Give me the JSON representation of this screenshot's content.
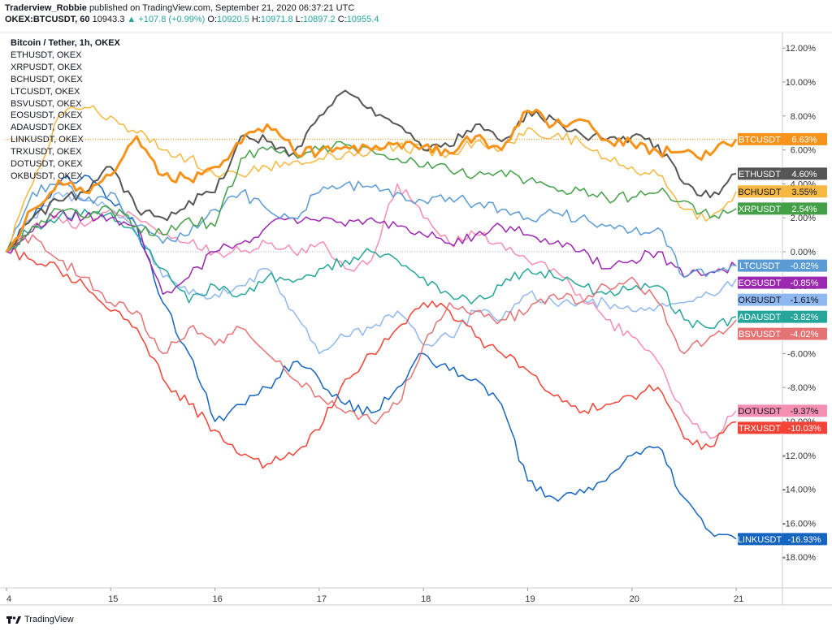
{
  "header": {
    "author": "Traderview_Robbie",
    "published": "published on TradingView.com, September 21, 2020 06:37:21 UTC"
  },
  "ohlc": {
    "symbol": "OKEX:BTCUSDT, 60",
    "price": "10943.3",
    "change": "+107.8 (+0.99%)",
    "open_label": "O:",
    "open": "10920.5",
    "high_label": "H:",
    "high": "10971.8",
    "low_label": "L:",
    "low": "10897.2",
    "close_label": "C:",
    "close": "10955.4"
  },
  "legend": {
    "main": "Bitcoin / Tether, 1h, OKEX",
    "items": [
      "ETHUSDT, OKEX",
      "XRPUSDT, OKEX",
      "BCHUSDT, OKEX",
      "LTCUSDT, OKEX",
      "BSVUSDT, OKEX",
      "EOSUSDT, OKEX",
      "ADAUSDT, OKEX",
      "LINKUSDT, OKEX",
      "TRXUSDT, OKEX",
      "DOTUSDT, OKEX",
      "OKBUSDT, OKEX"
    ]
  },
  "footer": {
    "brand": "TradingView"
  },
  "chart_data": {
    "type": "line",
    "x_ticks": [
      "4",
      "15",
      "16",
      "17",
      "18",
      "19",
      "20",
      "21"
    ],
    "y_ticks": [
      "12.00%",
      "10.00%",
      "8.00%",
      "6.00%",
      "4.00%",
      "2.00%",
      "0.00%",
      "-2.00%",
      "-4.00%",
      "-6.00%",
      "-8.00%",
      "-10.00%",
      "-12.00%",
      "-14.00%",
      "-16.00%",
      "-18.00%"
    ],
    "ylim": [
      -20,
      12.5
    ],
    "x": [
      0,
      0.25,
      0.5,
      0.75,
      1,
      1.25,
      1.5,
      1.75,
      2,
      2.25,
      2.5,
      2.75,
      3,
      3.25,
      3.5,
      3.75,
      4,
      4.25,
      4.5,
      4.75,
      5,
      5.25,
      5.5,
      5.75,
      6,
      6.25,
      6.5,
      6.75,
      7
    ],
    "series": [
      {
        "name": "BTCUSDT",
        "color": "#f7931a",
        "label": "6.63%",
        "value": 6.63,
        "width": 3,
        "values": [
          0,
          2.5,
          4.2,
          3.5,
          4.5,
          6.8,
          4.5,
          4.3,
          5.0,
          6.4,
          7.5,
          6.0,
          5.9,
          6.2,
          6.0,
          6.4,
          6.2,
          5.8,
          6.8,
          6.0,
          8.3,
          7.5,
          7.8,
          6.6,
          6.4,
          5.9,
          5.9,
          5.7,
          6.63
        ]
      },
      {
        "name": "ETHUSDT",
        "color": "#555555",
        "label": "4.60%",
        "value": 4.6,
        "width": 2,
        "values": [
          0,
          2.0,
          3.0,
          3.5,
          5.0,
          2.5,
          2.0,
          3.0,
          3.5,
          6.8,
          6.5,
          5.8,
          8.0,
          9.5,
          8.5,
          7.5,
          6.0,
          6.2,
          7.5,
          6.5,
          8.3,
          7.8,
          7.0,
          6.6,
          6.8,
          6.3,
          4.0,
          3.2,
          4.6
        ]
      },
      {
        "name": "XRPUSDT",
        "color": "#43a047",
        "label": "2.54%",
        "value": 2.54,
        "width": 1.5,
        "values": [
          0,
          1.5,
          2.5,
          2.0,
          2.5,
          1.5,
          1.0,
          2.0,
          1.5,
          5.5,
          6.0,
          5.8,
          6.0,
          6.3,
          6.0,
          5.5,
          5.0,
          4.8,
          4.5,
          4.8,
          4.2,
          3.8,
          3.6,
          3.2,
          3.2,
          3.5,
          3.0,
          2.0,
          2.54
        ]
      },
      {
        "name": "BCHUSDT",
        "color": "#f5b841",
        "label": "3.55%",
        "value": 3.55,
        "width": 1.5,
        "values": [
          0,
          4.0,
          8.0,
          8.5,
          8.0,
          7.0,
          6.0,
          5.5,
          4.5,
          4.5,
          5.0,
          5.3,
          5.5,
          5.8,
          6.0,
          6.2,
          6.0,
          5.8,
          6.5,
          6.0,
          7.3,
          6.8,
          6.5,
          5.5,
          5.0,
          4.5,
          2.5,
          2.0,
          3.55
        ]
      },
      {
        "name": "LTCUSDT",
        "color": "#5b9bd5",
        "label": "-0.82%",
        "value": -0.82,
        "width": 1.5,
        "values": [
          0,
          3.5,
          4.0,
          3.0,
          3.5,
          1.5,
          0.5,
          1.0,
          2.5,
          3.5,
          2.5,
          2.0,
          3.5,
          4.0,
          3.8,
          3.5,
          3.0,
          3.2,
          2.8,
          2.5,
          2.0,
          2.3,
          2.0,
          1.5,
          1.2,
          1.4,
          -1.5,
          -1.2,
          -0.82
        ]
      },
      {
        "name": "BSVUSDT",
        "color": "#e57373",
        "label": "-4.02%",
        "value": -4.02,
        "width": 1.5,
        "values": [
          0,
          1.0,
          -0.5,
          -1.5,
          -3.0,
          -3.5,
          -6.0,
          -4.5,
          -5.5,
          -4.5,
          -6.0,
          -7.5,
          -8.5,
          -9.5,
          -10.0,
          -9.0,
          -5.5,
          -3.0,
          -3.5,
          -4.0,
          -3.5,
          -2.5,
          -3.0,
          -2.0,
          -1.5,
          -3.0,
          -6.0,
          -5.0,
          -4.02
        ]
      },
      {
        "name": "EOSUSDT",
        "color": "#9c27b0",
        "label": "-0.85%",
        "value": -0.85,
        "width": 1.5,
        "values": [
          0,
          1.2,
          2.3,
          2.0,
          2.0,
          1.5,
          -2.5,
          -1.5,
          0,
          0.5,
          1.5,
          2.0,
          1.8,
          1.5,
          2.0,
          1.5,
          1.0,
          0.5,
          1.0,
          1.5,
          1.0,
          0.5,
          0,
          -1.0,
          -0.5,
          0,
          -1.5,
          -1.2,
          -0.85
        ]
      },
      {
        "name": "ADAUSDT",
        "color": "#26a69a",
        "label": "-3.82%",
        "value": -3.82,
        "width": 1.5,
        "values": [
          0,
          1.5,
          2.0,
          2.5,
          2.3,
          1.0,
          -1.0,
          -3.0,
          -2.0,
          -2.5,
          -1.5,
          -1.8,
          -1.0,
          -0.5,
          0,
          -0.5,
          -1.5,
          -2.5,
          -2.8,
          -2.0,
          -1.0,
          -1.5,
          -2.0,
          -2.5,
          -2.2,
          -2.0,
          -4.0,
          -4.5,
          -3.82
        ]
      },
      {
        "name": "LINKUSDT",
        "color": "#1565c0",
        "label": "-16.93%",
        "value": -16.93,
        "width": 1.5,
        "values": [
          0,
          2.0,
          4.0,
          4.5,
          3.0,
          1.5,
          -3.0,
          -6.0,
          -10.0,
          -9.0,
          -8.0,
          -6.5,
          -7.5,
          -9.0,
          -9.5,
          -8.0,
          -6.0,
          -7.0,
          -7.5,
          -9.0,
          -13.5,
          -14.5,
          -14.0,
          -13.5,
          -12.0,
          -11.5,
          -14.5,
          -16.5,
          -16.93
        ]
      },
      {
        "name": "TRXUSDT",
        "color": "#f44336",
        "label": "-10.03%",
        "value": -10.03,
        "width": 1.5,
        "values": [
          0,
          -0.5,
          -1.0,
          -2.0,
          -3.5,
          -4.5,
          -7.5,
          -9.0,
          -10.5,
          -12.0,
          -12.5,
          -12.0,
          -10.5,
          -7.5,
          -6.0,
          -4.5,
          -3.0,
          -3.5,
          -5.0,
          -6.0,
          -7.0,
          -8.5,
          -9.5,
          -9.0,
          -8.5,
          -8.0,
          -11.0,
          -11.5,
          -10.03
        ]
      },
      {
        "name": "DOTUSDT",
        "color": "#f48fb1",
        "label": "-9.37%",
        "value": -9.37,
        "width": 1.5,
        "values": [
          0,
          1.5,
          2.0,
          1.5,
          2.5,
          2.0,
          1.0,
          0.5,
          0,
          0,
          0.5,
          0,
          0.5,
          -1.0,
          -0.5,
          4.0,
          2.0,
          0.5,
          1.0,
          0.5,
          -0.5,
          -1.0,
          -2.5,
          -4.0,
          -5.0,
          -6.5,
          -9.5,
          -11.0,
          -9.37
        ]
      },
      {
        "name": "OKBUSDT",
        "color": "#90b8f0",
        "label": "-1.61%",
        "value": -1.61,
        "width": 1.5,
        "values": [
          0,
          2.0,
          3.5,
          3.0,
          2.5,
          1.0,
          -1.5,
          -2.5,
          -2.5,
          -2.0,
          -1.0,
          -3.5,
          -6.0,
          -5.0,
          -4.5,
          -3.5,
          -5.5,
          -5.0,
          -3.5,
          -4.0,
          -2.5,
          -3.0,
          -3.0,
          -3.0,
          -3.5,
          -3.2,
          -3.0,
          -2.5,
          -1.61
        ]
      }
    ]
  }
}
